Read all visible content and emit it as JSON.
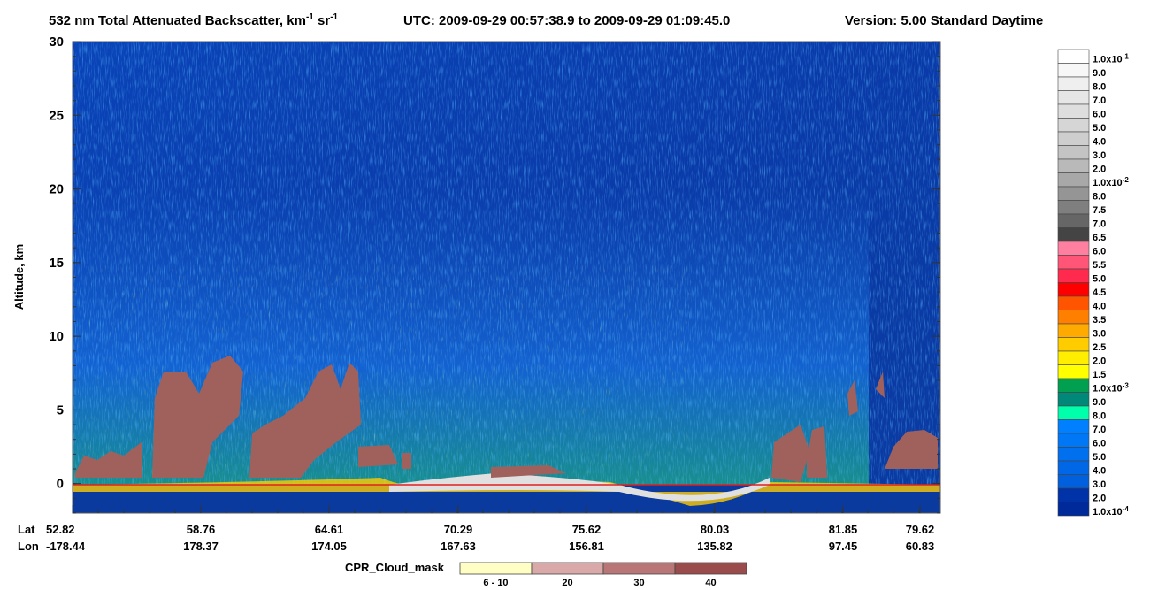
{
  "chart_data": {
    "type": "heatmap",
    "title": [
      {
        "text": "532 nm Total Attenuated Backscatter, km"
      },
      {
        "sup": "-1"
      },
      {
        "text": " sr"
      },
      {
        "sup": "-1"
      }
    ],
    "utc": "UTC:  2009-09-29 00:57:38.9  to  2009-09-29 01:09:45.0",
    "version": "Version: 5.00  Standard  Daytime",
    "y_label": "Altitude, km",
    "ylim": [
      -2,
      30
    ],
    "yticks": [
      0,
      5,
      10,
      15,
      20,
      25,
      30
    ],
    "x_row_labels": [
      "Lat",
      "Lon"
    ],
    "lat": [
      "52.82",
      "58.76",
      "64.61",
      "70.29",
      "75.62",
      "80.03",
      "81.85",
      "79.62"
    ],
    "lon": [
      "-178.44",
      "178.37",
      "174.05",
      "167.63",
      "156.81",
      "135.82",
      "97.45",
      "60.83"
    ],
    "colorbar": [
      {
        "label": "1.0x10",
        "sup": "-1",
        "color": "#ffffff"
      },
      {
        "label": "9.0",
        "color": "#f7f7f7"
      },
      {
        "label": "8.0",
        "color": "#efefef"
      },
      {
        "label": "7.0",
        "color": "#e6e6e6"
      },
      {
        "label": "6.0",
        "color": "#dedede"
      },
      {
        "label": "5.0",
        "color": "#d6d6d6"
      },
      {
        "label": "4.0",
        "color": "#cecece"
      },
      {
        "label": "3.0",
        "color": "#c4c4c4"
      },
      {
        "label": "2.0",
        "color": "#b9b9b9"
      },
      {
        "label": "1.0x10",
        "sup": "-2",
        "color": "#a8a8a8"
      },
      {
        "label": "8.0",
        "color": "#959595"
      },
      {
        "label": "7.5",
        "color": "#7f7f7f"
      },
      {
        "label": "7.0",
        "color": "#666666"
      },
      {
        "label": "6.5",
        "color": "#444444"
      },
      {
        "label": "6.0",
        "color": "#ff7fa0"
      },
      {
        "label": "5.5",
        "color": "#ff5577"
      },
      {
        "label": "5.0",
        "color": "#ff2a4d"
      },
      {
        "label": "4.5",
        "color": "#ff0000"
      },
      {
        "label": "4.0",
        "color": "#ff5500"
      },
      {
        "label": "3.5",
        "color": "#ff7f00"
      },
      {
        "label": "3.0",
        "color": "#ffaa00"
      },
      {
        "label": "2.5",
        "color": "#ffcc00"
      },
      {
        "label": "2.0",
        "color": "#ffee00"
      },
      {
        "label": "1.5",
        "color": "#ffff00"
      },
      {
        "label": "1.0x10",
        "sup": "-3",
        "color": "#00a050"
      },
      {
        "label": "9.0",
        "color": "#008878"
      },
      {
        "label": "8.0",
        "color": "#00ffaa"
      },
      {
        "label": "7.0",
        "color": "#0080ff"
      },
      {
        "label": "6.0",
        "color": "#0078f5"
      },
      {
        "label": "5.0",
        "color": "#0070ee"
      },
      {
        "label": "4.0",
        "color": "#0068e6"
      },
      {
        "label": "3.0",
        "color": "#0060dd"
      },
      {
        "label": "2.0",
        "color": "#0032a8"
      },
      {
        "label": "1.0x10",
        "sup": "-4",
        "color": "#002a9a"
      }
    ],
    "mask_label": "CPR_Cloud_mask",
    "mask": [
      {
        "label": "6 - 10",
        "color": "#ffffc4"
      },
      {
        "label": "20",
        "color": "#d9a8a8"
      },
      {
        "label": "30",
        "color": "#b87676"
      },
      {
        "label": "40",
        "color": "#9a4c4c"
      }
    ]
  }
}
